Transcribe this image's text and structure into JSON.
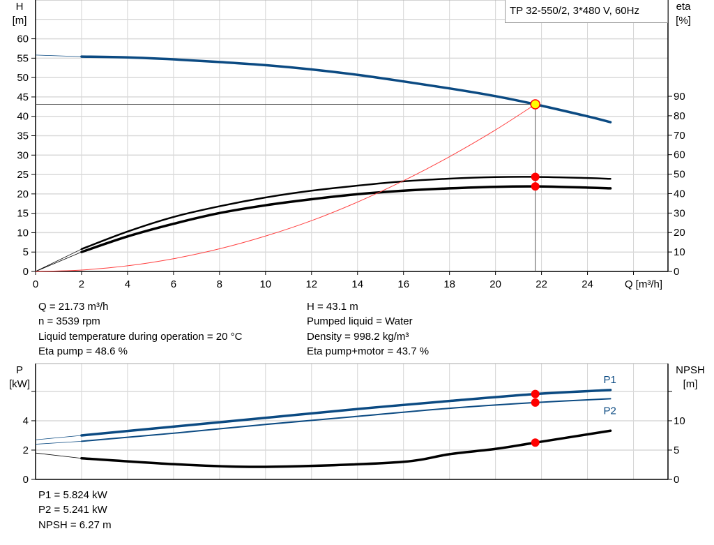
{
  "chart_data": [
    {
      "type": "line",
      "title": "TP 32-550/2, 3*480 V, 60Hz",
      "xlabel": "Q [m³/h]",
      "ylabel_left": "H\n[m]",
      "ylabel_left_lines": [
        "H",
        "[m]"
      ],
      "ylabel_right_lines": [
        "eta",
        "[%]"
      ],
      "xlim": [
        0,
        27.5
      ],
      "ylim_left": [
        0,
        70
      ],
      "ylim_right": [
        0,
        139.5
      ],
      "x_ticks": [
        0,
        2,
        4,
        6,
        8,
        10,
        12,
        14,
        16,
        18,
        20,
        22,
        24
      ],
      "y_ticks_left": [
        0,
        5,
        10,
        15,
        20,
        25,
        30,
        35,
        40,
        45,
        50,
        55,
        60
      ],
      "y_ticks_right": [
        0,
        10,
        20,
        30,
        40,
        50,
        60,
        70,
        80,
        90
      ],
      "grid": true,
      "series": [
        {
          "key": "head",
          "axis": "left",
          "color": "#0b4a82",
          "x": [
            0,
            2,
            4,
            6,
            8,
            10,
            12,
            14,
            16,
            18,
            20,
            21.73,
            24,
            25
          ],
          "y": [
            55.8,
            55.4,
            55.2,
            54.7,
            54.0,
            53.2,
            52.1,
            50.7,
            49.0,
            47.2,
            45.2,
            43.1,
            40.0,
            38.5
          ]
        },
        {
          "key": "eta_pump",
          "axis": "right",
          "color": "#000000",
          "x": [
            0,
            2,
            4,
            6,
            8,
            10,
            12,
            14,
            16,
            18,
            20,
            21.73,
            24,
            25
          ],
          "y": [
            0,
            11.5,
            20.5,
            28,
            33.5,
            38,
            41.5,
            44.1,
            46.3,
            47.7,
            48.5,
            48.6,
            48.0,
            47.6
          ]
        },
        {
          "key": "eta_pump_motor",
          "axis": "right",
          "color": "#000000",
          "x": [
            0,
            2,
            4,
            6,
            8,
            10,
            12,
            14,
            16,
            18,
            20,
            21.73,
            24,
            25
          ],
          "y": [
            0,
            10,
            18,
            24.5,
            30,
            34,
            37.1,
            39.7,
            41.5,
            42.7,
            43.5,
            43.7,
            43.1,
            42.7
          ]
        },
        {
          "key": "system_curve",
          "axis": "left",
          "color": "#ff4040",
          "x": [
            0,
            2,
            4,
            6,
            8,
            10,
            12,
            14,
            16,
            18,
            20,
            21.73
          ],
          "y": [
            0,
            0.37,
            1.46,
            3.29,
            5.84,
            9.13,
            13.1,
            17.9,
            23.4,
            29.6,
            36.5,
            43.1
          ]
        }
      ],
      "duty_point": {
        "Q": 21.73,
        "H": 43.1,
        "eta_pump": 48.6,
        "eta_pump_motor": 43.7,
        "marker_color": "#ffff00"
      }
    },
    {
      "type": "line",
      "ylabel_left_lines": [
        "P",
        "[kW]"
      ],
      "ylabel_right_lines": [
        "NPSH",
        "[m]"
      ],
      "xlim": [
        0,
        27.5
      ],
      "ylim_left": [
        0,
        7.9
      ],
      "ylim_right": [
        0,
        19.75
      ],
      "y_ticks_left": [
        0,
        2,
        4,
        6
      ],
      "y_ticks_left_labels": [
        "0",
        "2",
        "4",
        ""
      ],
      "y_ticks_right": [
        0,
        5,
        10,
        15
      ],
      "y_ticks_right_labels": [
        "0",
        "5",
        "10",
        ""
      ],
      "grid": true,
      "series": [
        {
          "key": "P1",
          "name": "P1",
          "axis": "left",
          "color": "#0b4a82",
          "x": [
            0,
            2,
            6,
            10,
            14,
            18,
            21.73,
            25
          ],
          "y": [
            2.7,
            3.0,
            3.6,
            4.2,
            4.8,
            5.35,
            5.824,
            6.1
          ]
        },
        {
          "key": "P2",
          "name": "P2",
          "axis": "left",
          "color": "#0b4a82",
          "x": [
            0,
            2,
            6,
            10,
            14,
            18,
            21.73,
            25
          ],
          "y": [
            2.4,
            2.6,
            3.15,
            3.75,
            4.3,
            4.85,
            5.241,
            5.5
          ]
        },
        {
          "key": "NPSH",
          "axis": "right",
          "color": "#000000",
          "x": [
            0,
            2,
            6,
            9,
            12,
            16,
            18,
            20,
            21.73,
            25
          ],
          "y": [
            4.5,
            3.6,
            2.6,
            2.15,
            2.3,
            3.0,
            4.3,
            5.2,
            6.27,
            8.3
          ]
        }
      ],
      "duty_point": {
        "Q": 21.73,
        "P1": 5.824,
        "P2": 5.241,
        "NPSH": 6.27
      }
    }
  ],
  "info_top_left": [
    "Q = 21.73 m³/h",
    "n = 3539 rpm",
    "Liquid temperature during operation = 20 °C",
    "Eta pump = 48.6 %"
  ],
  "info_top_right": [
    "H = 43.1 m",
    "Pumped liquid = Water",
    "Density = 998.2 kg/m³",
    "Eta pump+motor = 43.7 %"
  ],
  "info_bottom": [
    "P1 = 5.824 kW",
    "P2 = 5.241 kW",
    "NPSH = 6.27 m"
  ]
}
